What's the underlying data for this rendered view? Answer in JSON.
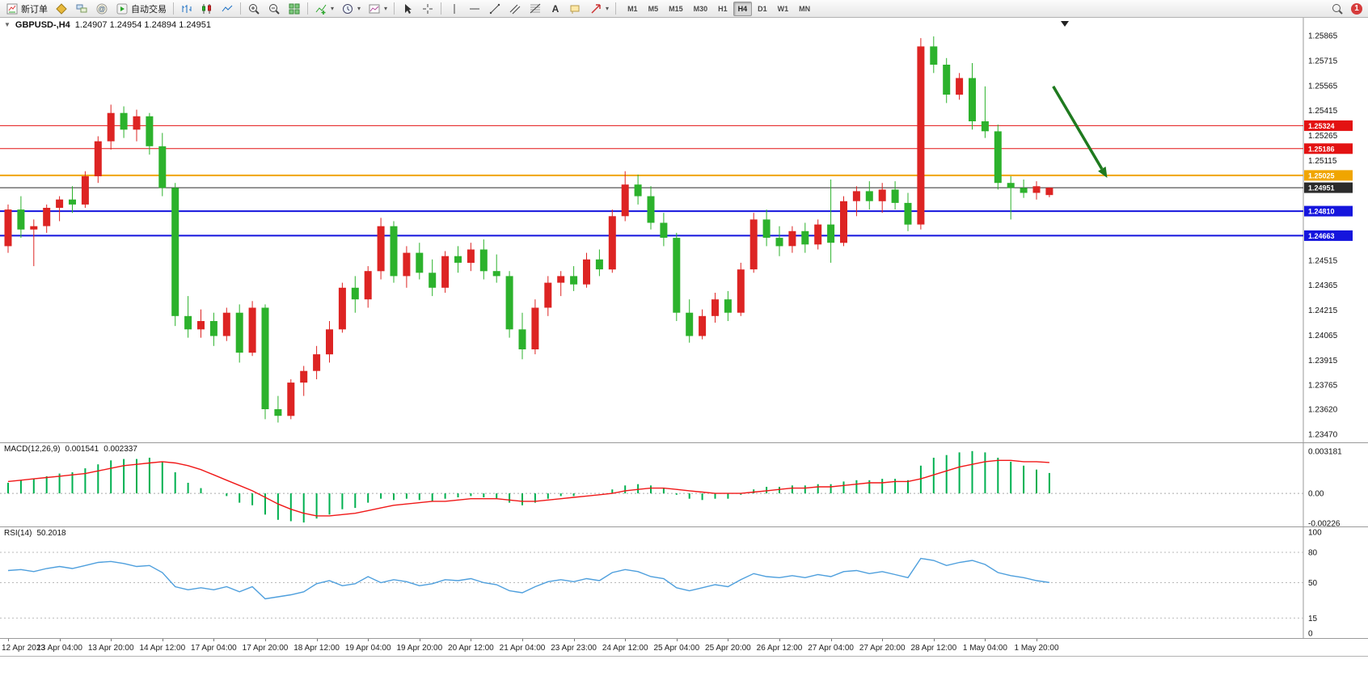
{
  "toolbar": {
    "new_order_label": "新订单",
    "autotrading_label": "自动交易",
    "timeframes": [
      "M1",
      "M5",
      "M15",
      "M30",
      "H1",
      "H4",
      "D1",
      "W1",
      "MN"
    ],
    "active_timeframe": "H4",
    "notification_badge": "1",
    "icons": [
      "new-order-icon",
      "navigator-icon",
      "market-watch-icon",
      "metaeditor-icon",
      "autotrading-icon",
      "bar-chart-icon",
      "candlestick-chart-icon",
      "line-chart-icon",
      "zoom-in-icon",
      "zoom-out-icon",
      "tile-windows-icon",
      "indicators-icon",
      "periods-icon",
      "templates-icon",
      "cursor-icon",
      "crosshair-icon",
      "vertical-line-icon",
      "horizontal-line-icon",
      "trendline-icon",
      "channel-icon",
      "fibonacci-icon",
      "text-icon",
      "text-label-icon",
      "arrows-icon",
      "search-icon"
    ]
  },
  "chart": {
    "title": "GBPUSD-,H4",
    "ohlc_text": "1.24907 1.24954 1.24894 1.24951"
  },
  "chart_data": {
    "type": "candlestick",
    "symbol": "GBPUSD-",
    "period": "H4",
    "current_bar": {
      "open": "1.24907",
      "high": "1.24954",
      "low": "1.24894",
      "close": "1.24951"
    },
    "price_range": [
      1.23421,
      1.25972
    ],
    "y_ticks": [
      "1.25865",
      "1.25715",
      "1.25565",
      "1.25415",
      "1.25265",
      "1.25115",
      "1.24515",
      "1.24365",
      "1.24215",
      "1.24065",
      "1.23915",
      "1.23765",
      "1.23620",
      "1.23470"
    ],
    "hlines": [
      {
        "price": 1.25324,
        "label": "1.25324",
        "color": "#e31212",
        "width": 1
      },
      {
        "price": 1.25186,
        "label": "1.25186",
        "color": "#e31212",
        "width": 1
      },
      {
        "price": 1.25025,
        "label": "1.25025",
        "color": "#f0a500",
        "width": 2
      },
      {
        "price": 1.24951,
        "label": "1.24951",
        "color": "#2b2b2b",
        "width": 1,
        "current": true
      },
      {
        "price": 1.2481,
        "label": "1.24810",
        "color": "#1515dd",
        "width": 2
      },
      {
        "price": 1.24663,
        "label": "1.24663",
        "color": "#1515dd",
        "width": 2
      }
    ],
    "colors": {
      "up": "#dd2423",
      "down": "#2cb22c",
      "macd_hist": "#00b050",
      "macd_signal": "#f01818",
      "rsi": "#4e9fdd",
      "annotation": "#1f7a1f"
    },
    "candles": [
      [
        1.246,
        1.2485,
        1.2456,
        1.2482
      ],
      [
        1.2482,
        1.249,
        1.2465,
        1.247
      ],
      [
        1.247,
        1.2476,
        1.2448,
        1.2472
      ],
      [
        1.2472,
        1.2485,
        1.2468,
        1.2483
      ],
      [
        1.2483,
        1.249,
        1.2475,
        1.2488
      ],
      [
        1.2488,
        1.2496,
        1.248,
        1.2485
      ],
      [
        1.2485,
        1.2505,
        1.2483,
        1.2502
      ],
      [
        1.2502,
        1.2526,
        1.2498,
        1.2523
      ],
      [
        1.2523,
        1.2545,
        1.2518,
        1.254
      ],
      [
        1.254,
        1.2544,
        1.2525,
        1.253
      ],
      [
        1.253,
        1.2542,
        1.2523,
        1.2538
      ],
      [
        1.2538,
        1.254,
        1.2515,
        1.252
      ],
      [
        1.252,
        1.2528,
        1.249,
        1.2495
      ],
      [
        1.2495,
        1.2498,
        1.2412,
        1.2418
      ],
      [
        1.2418,
        1.243,
        1.2405,
        1.241
      ],
      [
        1.241,
        1.2422,
        1.2405,
        1.2415
      ],
      [
        1.2415,
        1.242,
        1.24,
        1.2406
      ],
      [
        1.2406,
        1.2423,
        1.2403,
        1.242
      ],
      [
        1.242,
        1.2425,
        1.239,
        1.2396
      ],
      [
        1.2396,
        1.2427,
        1.2394,
        1.2423
      ],
      [
        1.2423,
        1.2425,
        1.2356,
        1.2362
      ],
      [
        1.2362,
        1.237,
        1.2354,
        1.2358
      ],
      [
        1.2358,
        1.238,
        1.2356,
        1.2378
      ],
      [
        1.2378,
        1.2388,
        1.237,
        1.2385
      ],
      [
        1.2385,
        1.24,
        1.238,
        1.2395
      ],
      [
        1.2395,
        1.2415,
        1.239,
        1.241
      ],
      [
        1.241,
        1.2438,
        1.2408,
        1.2435
      ],
      [
        1.2435,
        1.2442,
        1.242,
        1.2428
      ],
      [
        1.2428,
        1.2448,
        1.2423,
        1.2445
      ],
      [
        1.2445,
        1.2477,
        1.244,
        1.2472
      ],
      [
        1.2472,
        1.2475,
        1.2438,
        1.2442
      ],
      [
        1.2442,
        1.246,
        1.2435,
        1.2456
      ],
      [
        1.2456,
        1.2462,
        1.244,
        1.2444
      ],
      [
        1.2444,
        1.2452,
        1.243,
        1.2435
      ],
      [
        1.2435,
        1.2457,
        1.2432,
        1.2454
      ],
      [
        1.2454,
        1.246,
        1.2444,
        1.245
      ],
      [
        1.245,
        1.2462,
        1.2445,
        1.2458
      ],
      [
        1.2458,
        1.2464,
        1.244,
        1.2445
      ],
      [
        1.2445,
        1.2455,
        1.2438,
        1.2442
      ],
      [
        1.2442,
        1.2445,
        1.2405,
        1.241
      ],
      [
        1.241,
        1.242,
        1.2392,
        1.2398
      ],
      [
        1.2398,
        1.2428,
        1.2395,
        1.2423
      ],
      [
        1.2423,
        1.2442,
        1.2418,
        1.2438
      ],
      [
        1.2438,
        1.2445,
        1.243,
        1.2442
      ],
      [
        1.2442,
        1.2448,
        1.2433,
        1.2437
      ],
      [
        1.2437,
        1.2456,
        1.2435,
        1.2452
      ],
      [
        1.2452,
        1.2458,
        1.2442,
        1.2446
      ],
      [
        1.2446,
        1.2482,
        1.2444,
        1.2478
      ],
      [
        1.2478,
        1.2505,
        1.2475,
        1.2497
      ],
      [
        1.2497,
        1.2503,
        1.2485,
        1.249
      ],
      [
        1.249,
        1.2496,
        1.247,
        1.2474
      ],
      [
        1.2474,
        1.248,
        1.246,
        1.2465
      ],
      [
        1.2465,
        1.2468,
        1.2415,
        1.242
      ],
      [
        1.242,
        1.2428,
        1.2402,
        1.2406
      ],
      [
        1.2406,
        1.2422,
        1.2404,
        1.2418
      ],
      [
        1.2418,
        1.2432,
        1.2414,
        1.2428
      ],
      [
        1.2428,
        1.2433,
        1.2415,
        1.242
      ],
      [
        1.242,
        1.245,
        1.2418,
        1.2446
      ],
      [
        1.2446,
        1.248,
        1.2444,
        1.2476
      ],
      [
        1.2476,
        1.2482,
        1.246,
        1.2465
      ],
      [
        1.2465,
        1.2472,
        1.2454,
        1.246
      ],
      [
        1.246,
        1.2472,
        1.2456,
        1.2469
      ],
      [
        1.2469,
        1.2474,
        1.2456,
        1.2461
      ],
      [
        1.2461,
        1.2476,
        1.2458,
        1.2473
      ],
      [
        1.2473,
        1.25,
        1.245,
        1.2462
      ],
      [
        1.2462,
        1.249,
        1.246,
        1.2487
      ],
      [
        1.2487,
        1.2496,
        1.2478,
        1.2493
      ],
      [
        1.2493,
        1.2499,
        1.2482,
        1.2487
      ],
      [
        1.2487,
        1.2498,
        1.248,
        1.2494
      ],
      [
        1.2494,
        1.2499,
        1.2482,
        1.2486
      ],
      [
        1.2486,
        1.2492,
        1.2469,
        1.2473
      ],
      [
        1.2473,
        1.2585,
        1.247,
        1.258
      ],
      [
        1.258,
        1.2586,
        1.2564,
        1.2569
      ],
      [
        1.2569,
        1.2573,
        1.2546,
        1.2551
      ],
      [
        1.2551,
        1.2564,
        1.2548,
        1.2561
      ],
      [
        1.2561,
        1.257,
        1.253,
        1.2535
      ],
      [
        1.2535,
        1.2556,
        1.2525,
        1.2529
      ],
      [
        1.2529,
        1.2533,
        1.2494,
        1.2498
      ],
      [
        1.2498,
        1.2502,
        1.2476,
        1.2495
      ],
      [
        1.2495,
        1.25,
        1.2489,
        1.2492
      ],
      [
        1.2492,
        1.2499,
        1.2488,
        1.2496
      ],
      [
        1.24907,
        1.24954,
        1.24894,
        1.24951
      ]
    ],
    "x_labels": [
      "12 Apr 2023",
      "13 Apr 04:00",
      "13 Apr 20:00",
      "14 Apr 12:00",
      "17 Apr 04:00",
      "17 Apr 20:00",
      "18 Apr 12:00",
      "19 Apr 04:00",
      "19 Apr 20:00",
      "20 Apr 12:00",
      "21 Apr 04:00",
      "23 Apr 23:00",
      "24 Apr 12:00",
      "25 Apr 04:00",
      "25 Apr 20:00",
      "26 Apr 12:00",
      "27 Apr 04:00",
      "27 Apr 20:00",
      "28 Apr 12:00",
      "1 May 04:00",
      "1 May 20:00"
    ],
    "x_label_step": 4,
    "macd": {
      "label": "MACD(12,26,9)",
      "value_main": "0.001541",
      "value_signal": "0.002337",
      "range": [
        -0.0025,
        0.0038
      ],
      "ticks": [
        "0.003181",
        "0.00",
        "-0.00226"
      ],
      "histogram": [
        0.0008,
        0.001,
        0.0011,
        0.0013,
        0.0015,
        0.0016,
        0.0019,
        0.0022,
        0.0025,
        0.0026,
        0.0026,
        0.0027,
        0.0024,
        0.0016,
        0.0008,
        0.0004,
        0.0,
        -0.0002,
        -0.0007,
        -0.0009,
        -0.0016,
        -0.002,
        -0.0021,
        -0.0022,
        -0.0019,
        -0.0016,
        -0.0012,
        -0.0011,
        -0.0007,
        -0.0004,
        -0.0005,
        -0.0004,
        -0.0005,
        -0.0006,
        -0.0004,
        -0.0003,
        -0.0002,
        -0.0003,
        -0.0004,
        -0.0007,
        -0.0009,
        -0.0007,
        -0.0004,
        -0.0002,
        -0.0002,
        0.0,
        0.0,
        0.0003,
        0.0006,
        0.0007,
        0.0006,
        0.0004,
        -0.0001,
        -0.0004,
        -0.0005,
        -0.0004,
        -0.0004,
        -0.0001,
        0.0003,
        0.0005,
        0.0005,
        0.0006,
        0.0006,
        0.0007,
        0.0007,
        0.0009,
        0.001,
        0.001,
        0.0011,
        0.0011,
        0.001,
        0.0021,
        0.0027,
        0.0029,
        0.0031,
        0.0032,
        0.0031,
        0.0027,
        0.0024,
        0.0021,
        0.0018,
        0.001541
      ],
      "signal": [
        0.0009,
        0.001,
        0.0011,
        0.0012,
        0.0013,
        0.0014,
        0.0015,
        0.0017,
        0.0019,
        0.0021,
        0.0022,
        0.0023,
        0.0024,
        0.0023,
        0.0021,
        0.0018,
        0.0014,
        0.001,
        0.0006,
        0.0002,
        -0.0003,
        -0.0008,
        -0.0012,
        -0.0015,
        -0.0017,
        -0.0017,
        -0.0016,
        -0.0015,
        -0.0013,
        -0.0011,
        -0.0009,
        -0.0008,
        -0.0007,
        -0.0006,
        -0.0006,
        -0.0005,
        -0.0004,
        -0.0004,
        -0.0004,
        -0.0005,
        -0.0006,
        -0.0006,
        -0.0005,
        -0.0004,
        -0.0003,
        -0.0002,
        -0.0001,
        0.0,
        0.0002,
        0.0003,
        0.0004,
        0.0004,
        0.0003,
        0.0002,
        0.0001,
        0.0,
        0.0,
        0.0,
        0.0001,
        0.0002,
        0.0003,
        0.0004,
        0.0004,
        0.0005,
        0.0005,
        0.0006,
        0.0007,
        0.0008,
        0.0008,
        0.0009,
        0.0009,
        0.0011,
        0.0014,
        0.0017,
        0.002,
        0.0022,
        0.0024,
        0.0025,
        0.0025,
        0.0024,
        0.0024,
        0.002337
      ]
    },
    "rsi": {
      "label": "RSI(14)",
      "value": "50.2018",
      "ticks": [
        100,
        80,
        50,
        15,
        0
      ],
      "levels": [
        80,
        50,
        15
      ],
      "series": [
        62,
        63,
        61,
        64,
        66,
        64,
        67,
        70,
        71,
        69,
        66,
        67,
        60,
        46,
        43,
        45,
        43,
        46,
        41,
        46,
        34,
        36,
        38,
        41,
        49,
        52,
        47,
        49,
        56,
        50,
        53,
        51,
        47,
        49,
        53,
        52,
        54,
        50,
        48,
        42,
        40,
        46,
        51,
        53,
        51,
        54,
        52,
        60,
        63,
        61,
        56,
        54,
        45,
        42,
        45,
        48,
        46,
        53,
        59,
        56,
        55,
        57,
        55,
        58,
        56,
        61,
        62,
        59,
        61,
        58,
        55,
        74,
        72,
        67,
        70,
        72,
        68,
        60,
        57,
        55,
        52,
        50.2
      ]
    },
    "annotation": {
      "type": "arrow",
      "x1_index": 81.3,
      "price1": 1.2556,
      "x2_index": 85.5,
      "price2": 1.2501
    }
  }
}
